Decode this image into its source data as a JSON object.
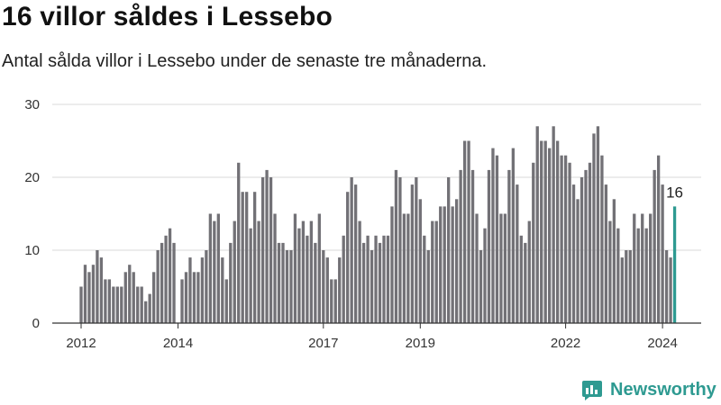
{
  "title": "16 villor såldes i Lessebo",
  "subtitle": "Antal sålda villor i Lessebo under de senaste tre månaderna.",
  "brand": {
    "name": "Newsworthy",
    "color": "#2e9a91",
    "icon": "bar-chart-icon"
  },
  "chart_data": {
    "type": "bar",
    "ylim": [
      0,
      30
    ],
    "yticks": [
      0,
      10,
      20,
      30
    ],
    "grid": true,
    "xtick_labels": [
      {
        "label": "2012",
        "index": 0
      },
      {
        "label": "2014",
        "index": 24
      },
      {
        "label": "2017",
        "index": 60
      },
      {
        "label": "2019",
        "index": 84
      },
      {
        "label": "2022",
        "index": 120
      },
      {
        "label": "2024",
        "index": 144
      }
    ],
    "bar_color": "#727176",
    "highlight_color": "#2e9a91",
    "highlight_label": "16",
    "values": [
      5,
      8,
      7,
      8,
      10,
      9,
      6,
      6,
      5,
      5,
      5,
      7,
      8,
      7,
      5,
      5,
      3,
      4,
      7,
      10,
      11,
      12,
      13,
      11,
      0,
      6,
      7,
      9,
      7,
      7,
      9,
      10,
      15,
      14,
      15,
      9,
      6,
      11,
      14,
      22,
      18,
      18,
      13,
      18,
      14,
      20,
      21,
      20,
      15,
      11,
      11,
      10,
      10,
      15,
      13,
      14,
      12,
      14,
      11,
      15,
      10,
      9,
      6,
      6,
      9,
      12,
      18,
      20,
      19,
      14,
      11,
      12,
      10,
      12,
      11,
      12,
      12,
      16,
      21,
      20,
      15,
      15,
      19,
      20,
      17,
      12,
      10,
      14,
      14,
      16,
      16,
      20,
      16,
      17,
      21,
      25,
      25,
      21,
      15,
      10,
      13,
      21,
      24,
      23,
      15,
      15,
      21,
      24,
      19,
      12,
      11,
      14,
      22,
      27,
      25,
      25,
      24,
      27,
      25,
      23,
      23,
      22,
      19,
      17,
      20,
      21,
      22,
      26,
      27,
      23,
      19,
      14,
      17,
      13,
      9,
      10,
      10,
      15,
      13,
      15,
      13,
      15,
      21,
      23,
      19,
      10,
      9,
      16
    ]
  }
}
